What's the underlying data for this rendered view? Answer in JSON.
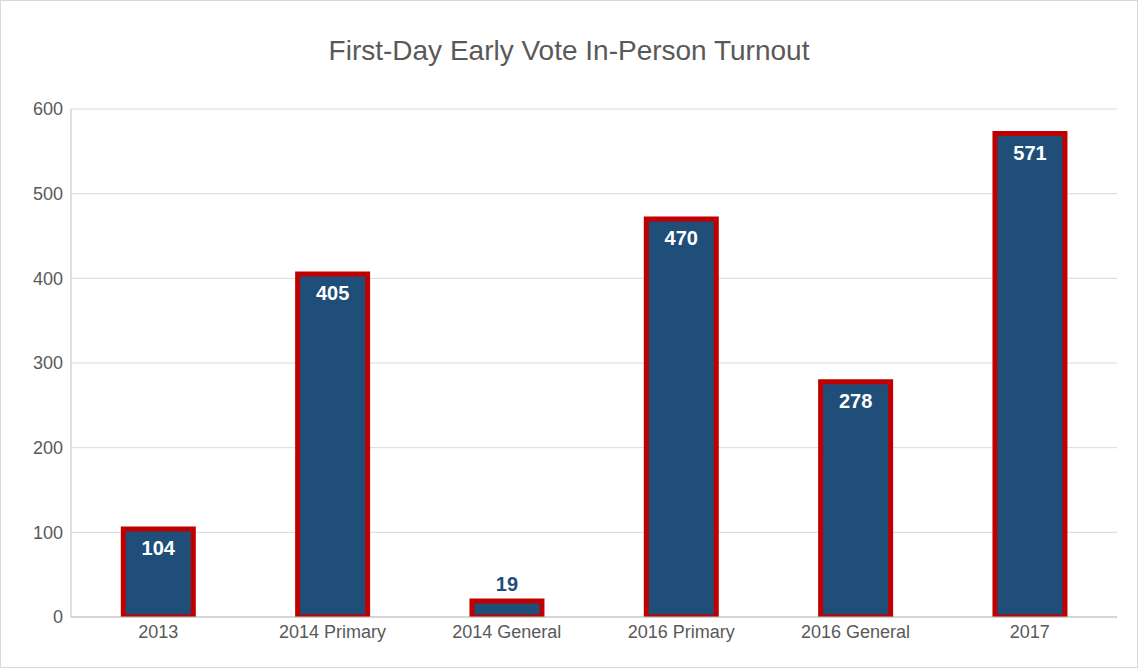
{
  "chart_data": {
    "type": "bar",
    "title": "First-Day Early Vote In-Person Turnout",
    "categories": [
      "2013",
      "2014 Primary",
      "2014 General",
      "2016 Primary",
      "2016 General",
      "2017"
    ],
    "values": [
      104,
      405,
      19,
      470,
      278,
      571
    ],
    "color": "#1f4e79",
    "ylim": [
      0,
      600
    ],
    "yticks": [
      0,
      100,
      200,
      300,
      400,
      500,
      600
    ],
    "grid": true,
    "data_labels": true
  }
}
